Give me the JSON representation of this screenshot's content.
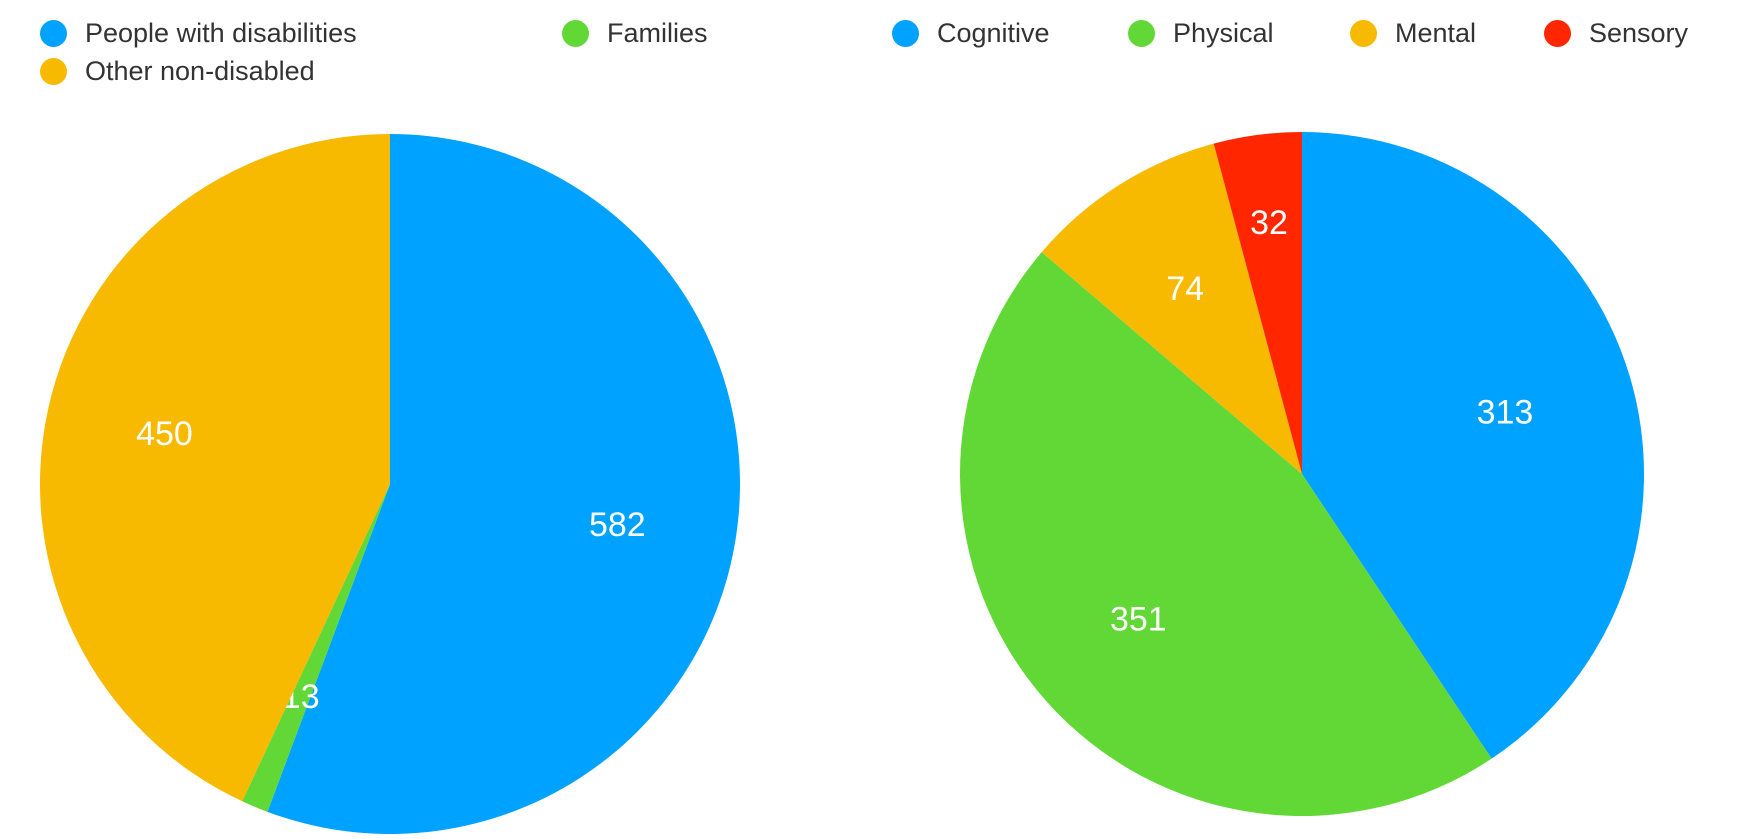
{
  "colors": {
    "blue": "#00a2ff",
    "green": "#61d836",
    "orange": "#f8ba00",
    "red": "#ff2600"
  },
  "chart_data": [
    {
      "type": "pie",
      "slices": [
        {
          "label": "People with disabilities",
          "value": 582,
          "color": "#00a2ff"
        },
        {
          "label": "Families",
          "value": 13,
          "color": "#61d836"
        },
        {
          "label": "Other non-disabled",
          "value": 450,
          "color": "#f8ba00"
        }
      ],
      "legend_placement": "top"
    },
    {
      "type": "pie",
      "slices": [
        {
          "label": "Cognitive",
          "value": 313,
          "color": "#00a2ff"
        },
        {
          "label": "Physical",
          "value": 351,
          "color": "#61d836"
        },
        {
          "label": "Mental",
          "value": 74,
          "color": "#f8ba00"
        },
        {
          "label": "Sensory",
          "value": 32,
          "color": "#ff2600"
        }
      ],
      "legend_placement": "top"
    }
  ]
}
